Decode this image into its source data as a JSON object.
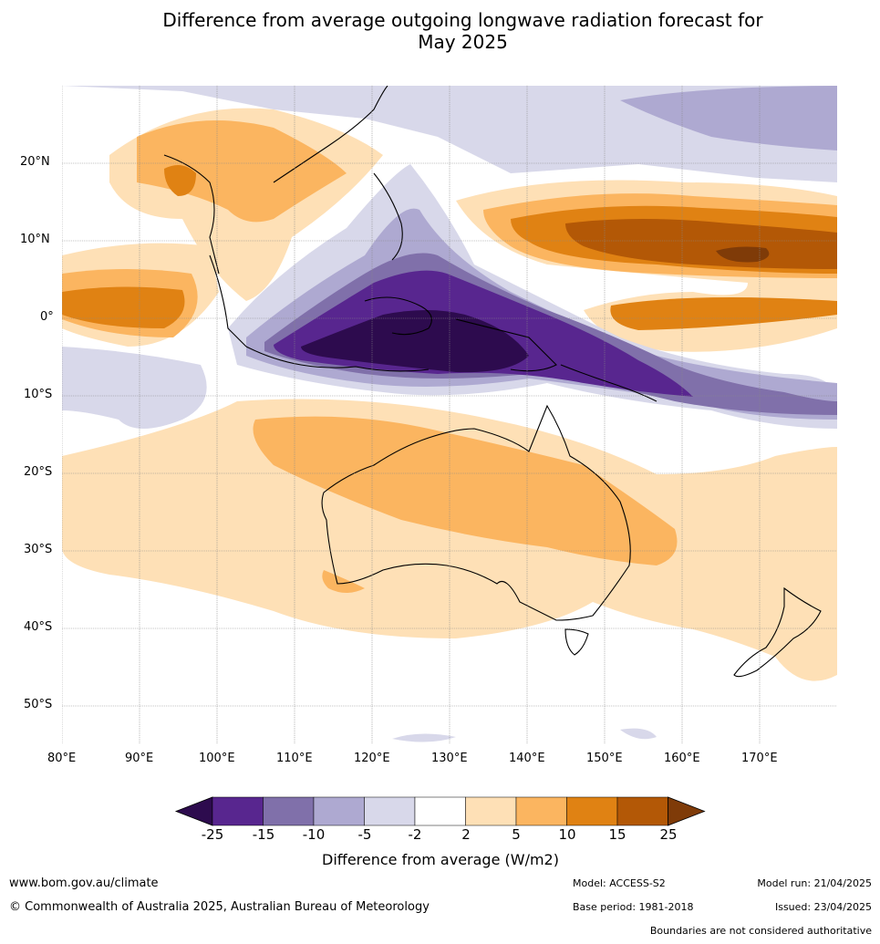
{
  "title": {
    "line1": "Difference from average outgoing longwave radiation forecast for",
    "line2": "May 2025"
  },
  "map": {
    "lon_labels": [
      "80°E",
      "90°E",
      "100°E",
      "110°E",
      "120°E",
      "130°E",
      "140°E",
      "150°E",
      "160°E",
      "170°E"
    ],
    "lat_labels": [
      "20°N",
      "10°N",
      "0°",
      "10°S",
      "20°S",
      "30°S",
      "40°S",
      "50°S"
    ],
    "extent": {
      "lon": [
        80,
        180
      ],
      "lat": [
        -55,
        30
      ]
    }
  },
  "colorbar": {
    "ticks": [
      "-25",
      "-15",
      "-10",
      "-5",
      "-2",
      "2",
      "5",
      "10",
      "15",
      "25"
    ],
    "colors": [
      "#2d0b4e",
      "#58268f",
      "#8070aa",
      "#aea9d1",
      "#d8d8ea",
      "#ffffff",
      "#fee0b6",
      "#fbb560",
      "#e08213",
      "#b35806",
      "#7f3b08"
    ],
    "label": "Difference from average (W/m2)"
  },
  "footer": {
    "website": "www.bom.gov.au/climate",
    "copyright": "© Commonwealth of Australia 2025, Australian Bureau of Meteorology",
    "model": "Model: ACCESS-S2",
    "base_period": "Base period: 1981-2018",
    "model_run": "Model run: 21/04/2025",
    "issued": "Issued: 23/04/2025",
    "disclaimer": "Boundaries are not considered authoritative"
  }
}
